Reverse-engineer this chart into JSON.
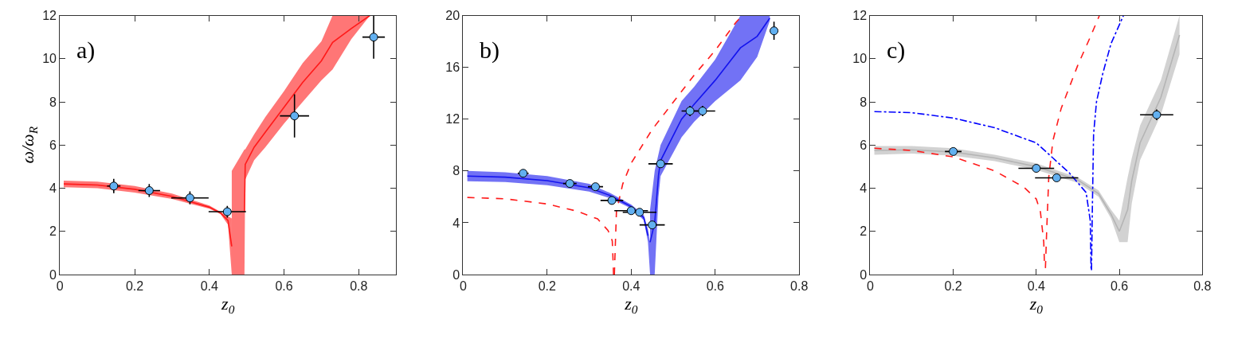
{
  "chart_data": [
    {
      "type": "line",
      "xlabel": "z$_{0}$",
      "ylabel": "ω/ω$_{R}$",
      "annotations": [
        "a)"
      ],
      "xlim": [
        0,
        0.9
      ],
      "xticks": [
        0,
        0.2,
        0.4,
        0.6,
        0.8
      ],
      "ylim": [
        0,
        12
      ],
      "yticks": [
        0,
        2,
        4,
        6,
        8,
        10,
        12
      ],
      "series": [
        {
          "color": "#ff1a1a",
          "marker": "none",
          "x": [
            0.01,
            0.1,
            0.2,
            0.3,
            0.4,
            0.43,
            0.45,
            0.46
          ],
          "values": [
            4.2,
            4.15,
            3.95,
            3.62,
            3.12,
            2.85,
            2.5,
            1.3
          ],
          "lower": [
            4.05,
            4.0,
            3.8,
            3.5,
            3.05,
            2.8,
            2.3,
            0
          ],
          "upper": [
            4.35,
            4.3,
            4.1,
            3.75,
            3.2,
            2.9,
            2.7,
            2.6
          ]
        },
        {
          "color": "#ff1a1a",
          "marker": "none",
          "x": [
            0.46,
            0.494,
            0.496,
            0.52,
            0.55,
            0.6,
            0.65,
            0.7,
            0.73,
            0.78,
            0.83
          ],
          "values": [
            null,
            2.9,
            5.1,
            5.9,
            6.6,
            7.75,
            8.9,
            9.9,
            10.75,
            11.4,
            12
          ],
          "lower": [
            0,
            0,
            4.4,
            5.3,
            5.9,
            7.0,
            8.0,
            9.0,
            9.5,
            10.9,
            12
          ],
          "upper": [
            4.8,
            5.8,
            5.8,
            6.5,
            7.3,
            8.5,
            9.8,
            10.8,
            12,
            12,
            12
          ]
        },
        {
          "type": "scatter",
          "color": "#62b0f0",
          "marker": "circle",
          "x": [
            0.144,
            0.239,
            0.348,
            0.448,
            0.628,
            0.84
          ],
          "values": [
            4.1,
            3.89,
            3.55,
            2.91,
            7.35,
            11.0
          ],
          "errors": [
            0.33,
            0.3,
            0.3,
            0.27,
            1.0,
            1.0
          ],
          "xerrors": [
            0.018,
            0.029,
            0.05,
            0.05,
            0.039,
            0.03
          ]
        }
      ]
    },
    {
      "type": "line",
      "xlabel": "z$_{0}$",
      "annotations": [
        "b)"
      ],
      "xlim": [
        0,
        0.8
      ],
      "xticks": [
        0,
        0.2,
        0.4,
        0.6,
        0.8
      ],
      "ylim": [
        0,
        20
      ],
      "yticks": [
        0,
        4,
        8,
        12,
        16,
        20
      ],
      "series": [
        {
          "color": "#1414ee",
          "marker": "none",
          "x": [
            0.01,
            0.1,
            0.2,
            0.3,
            0.35,
            0.4,
            0.43,
            0.44,
            0.445
          ],
          "values": [
            7.6,
            7.52,
            7.25,
            6.7,
            6.1,
            5.25,
            4.4,
            3.0,
            null
          ],
          "lower": [
            7.2,
            7.15,
            6.9,
            6.4,
            5.9,
            5.1,
            4.2,
            2.5,
            0
          ],
          "upper": [
            8.0,
            7.9,
            7.6,
            7.0,
            6.3,
            5.4,
            4.6,
            3.5,
            2.5
          ]
        },
        {
          "color": "#1414ee",
          "marker": "none",
          "x": [
            0.445,
            0.456,
            0.465,
            0.47,
            0.52,
            0.55,
            0.6,
            0.66,
            0.7,
            0.73
          ],
          "values": [
            2.5,
            4.0,
            7.65,
            8.8,
            12.0,
            13.15,
            15.0,
            17.5,
            18.4,
            19.8
          ],
          "lower": [
            0,
            0,
            6.0,
            7.6,
            10.6,
            11.8,
            13.4,
            15.0,
            16.8,
            19.6
          ],
          "upper": [
            5.0,
            8.0,
            9.3,
            10.0,
            13.4,
            14.5,
            16.6,
            20,
            20,
            20
          ]
        },
        {
          "color": "#ff1a1a",
          "marker": "none",
          "line_style": "dashed",
          "x": [
            0.01,
            0.1,
            0.2,
            0.27,
            0.32,
            0.345,
            0.355,
            0.357,
            0.358
          ],
          "values": [
            5.95,
            5.85,
            5.45,
            4.9,
            4.3,
            3.4,
            2.6,
            1.0,
            0
          ]
        },
        {
          "color": "#ff1a1a",
          "marker": "none",
          "line_style": "dashed",
          "x": [
            0.36,
            0.362,
            0.365,
            0.38,
            0.4,
            0.45,
            0.5,
            0.55,
            0.6,
            0.65,
            0.665
          ],
          "values": [
            0,
            2.0,
            4.9,
            7.0,
            8.6,
            11.2,
            13.3,
            15.4,
            17.3,
            19.5,
            20
          ]
        },
        {
          "type": "scatter",
          "color": "#62b0f0",
          "marker": "circle",
          "x": [
            0.143,
            0.254,
            0.315,
            0.354,
            0.4,
            0.42,
            0.45,
            0.47,
            0.54,
            0.57,
            0.74
          ],
          "values": [
            7.82,
            7.03,
            6.78,
            5.72,
            4.93,
            4.81,
            3.83,
            8.55,
            12.63,
            12.63,
            18.82
          ],
          "errors": [
            0.2,
            0.2,
            0.2,
            0.2,
            0.2,
            0.2,
            0.2,
            0.3,
            0.4,
            0.4,
            0.7
          ],
          "xerrors": [
            0.013,
            0.016,
            0.018,
            0.027,
            0.04,
            0.04,
            0.03,
            0.029,
            0.02,
            0.03,
            null
          ]
        }
      ]
    },
    {
      "type": "line",
      "xlabel": "z$_{0}$",
      "annotations": [
        "c)"
      ],
      "xlim": [
        0,
        0.8
      ],
      "xticks": [
        0,
        0.2,
        0.4,
        0.6,
        0.8
      ],
      "ylim": [
        0,
        12
      ],
      "yticks": [
        0,
        2,
        4,
        6,
        8,
        10,
        12
      ],
      "series": [
        {
          "color": "#b4b4b4",
          "marker": "none",
          "x": [
            0.01,
            0.1,
            0.2,
            0.3,
            0.4,
            0.5,
            0.55,
            0.58,
            0.6
          ],
          "values": [
            5.75,
            5.78,
            5.68,
            5.4,
            5.0,
            4.38,
            3.75,
            2.8,
            2.0
          ],
          "lower": [
            5.55,
            5.6,
            5.5,
            5.25,
            4.85,
            4.25,
            3.6,
            2.6,
            1.5
          ],
          "upper": [
            5.95,
            5.95,
            5.85,
            5.55,
            5.15,
            4.5,
            3.9,
            3.0,
            2.5
          ]
        },
        {
          "color": "#b4b4b4",
          "marker": "none",
          "x": [
            0.6,
            0.62,
            0.63,
            0.65,
            0.7,
            0.745
          ],
          "values": [
            2.0,
            3.0,
            4.35,
            6.1,
            8.2,
            11.1
          ],
          "lower": [
            1.5,
            1.5,
            3.3,
            5.3,
            7.4,
            10.2
          ],
          "upper": [
            2.5,
            4.5,
            5.4,
            6.9,
            9.0,
            12
          ]
        },
        {
          "color": "#ff1a1a",
          "marker": "none",
          "line_style": "dashed",
          "x": [
            0.01,
            0.1,
            0.2,
            0.3,
            0.37,
            0.4,
            0.41,
            0.418,
            0.42
          ],
          "values": [
            5.85,
            5.75,
            5.45,
            4.8,
            4.05,
            3.5,
            2.9,
            1.5,
            0.3
          ]
        },
        {
          "color": "#ff1a1a",
          "marker": "none",
          "line_style": "dashed",
          "x": [
            0.422,
            0.425,
            0.43,
            0.44,
            0.46,
            0.5,
            0.53,
            0.552
          ],
          "values": [
            0.3,
            2.0,
            4.5,
            6.2,
            7.7,
            9.7,
            11.0,
            12
          ]
        },
        {
          "color": "#0000ff",
          "marker": "none",
          "line_style": "dashdot",
          "x": [
            0.01,
            0.1,
            0.2,
            0.3,
            0.4,
            0.44,
            0.48,
            0.52,
            0.53,
            0.532
          ],
          "values": [
            7.55,
            7.5,
            7.25,
            6.8,
            6.1,
            5.4,
            4.7,
            3.8,
            2.5,
            0.2
          ]
        },
        {
          "color": "#0000ff",
          "marker": "none",
          "line_style": "dashdot",
          "x": [
            0.533,
            0.535,
            0.538,
            0.545,
            0.56,
            0.58,
            0.61
          ],
          "values": [
            0.2,
            3.0,
            6.5,
            8.0,
            9.3,
            10.7,
            12
          ]
        },
        {
          "type": "scatter",
          "color": "#62b0f0",
          "marker": "circle",
          "x": [
            0.2,
            0.4,
            0.449,
            0.69
          ],
          "values": [
            5.7,
            4.92,
            4.48,
            7.4
          ],
          "errors": [
            0.15,
            0.15,
            0.15,
            0.25
          ],
          "xerrors": [
            0.02,
            0.043,
            0.052,
            0.04
          ]
        }
      ]
    }
  ]
}
